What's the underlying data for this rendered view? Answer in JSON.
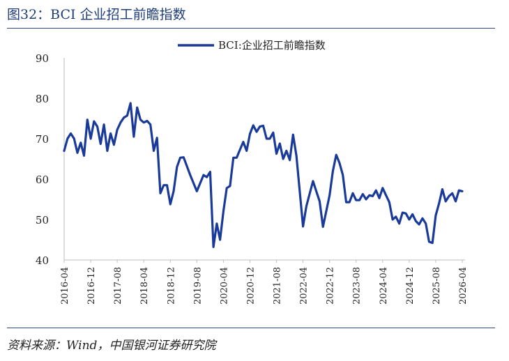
{
  "figure": {
    "title": "图32：BCI 企业招工前瞻指数",
    "source": "资料来源：Wind，中国银河证券研究院"
  },
  "colors": {
    "series": "#1a3a9a",
    "rule": "#2c4a86",
    "title": "#1f3d7a"
  },
  "chart_data": {
    "type": "line",
    "title": "",
    "xlabel": "",
    "ylabel": "",
    "ylim": [
      40,
      90
    ],
    "yticks": [
      40,
      50,
      60,
      70,
      80,
      90
    ],
    "xlim": [
      "2016-04",
      "2026-04"
    ],
    "xticks": [
      "2016-04",
      "2016-12",
      "2017-08",
      "2018-04",
      "2018-12",
      "2019-08",
      "2020-04",
      "2020-12",
      "2021-08",
      "2022-04",
      "2022-12",
      "2023-08",
      "2024-04",
      "2024-12",
      "2025-08",
      "2026-04"
    ],
    "grid": false,
    "legend": {
      "position": "top-center"
    },
    "series": [
      {
        "name": "BCI:企业招工前瞻指数",
        "x": [
          "2016-04",
          "2016-05",
          "2016-06",
          "2016-07",
          "2016-08",
          "2016-09",
          "2016-10",
          "2016-11",
          "2016-12",
          "2017-01",
          "2017-02",
          "2017-03",
          "2017-04",
          "2017-05",
          "2017-06",
          "2017-07",
          "2017-08",
          "2017-09",
          "2017-10",
          "2017-11",
          "2017-12",
          "2018-01",
          "2018-02",
          "2018-03",
          "2018-04",
          "2018-05",
          "2018-06",
          "2018-07",
          "2018-08",
          "2018-09",
          "2018-10",
          "2018-11",
          "2018-12",
          "2019-01",
          "2019-02",
          "2019-03",
          "2019-04",
          "2019-06",
          "2019-08",
          "2019-10",
          "2019-11",
          "2019-12",
          "2020-01",
          "2020-02",
          "2020-03",
          "2020-04",
          "2020-05",
          "2020-06",
          "2020-07",
          "2020-08",
          "2020-09",
          "2020-10",
          "2020-11",
          "2020-12",
          "2021-01",
          "2021-02",
          "2021-03",
          "2021-04",
          "2021-05",
          "2021-06",
          "2021-07",
          "2021-08",
          "2021-09",
          "2021-10",
          "2021-11",
          "2021-12",
          "2022-01",
          "2022-02",
          "2022-04",
          "2022-05",
          "2022-07",
          "2022-08",
          "2022-09",
          "2022-10",
          "2022-12",
          "2023-01",
          "2023-02",
          "2023-03",
          "2023-04",
          "2023-05",
          "2023-06",
          "2023-07",
          "2023-08",
          "2023-09",
          "2023-10",
          "2023-11",
          "2023-12",
          "2024-01",
          "2024-02",
          "2024-03",
          "2024-04",
          "2024-05",
          "2024-06",
          "2024-07",
          "2024-08",
          "2024-09",
          "2024-10",
          "2024-11",
          "2024-12",
          "2025-01",
          "2025-02",
          "2025-03",
          "2025-04",
          "2025-05",
          "2025-06",
          "2025-07",
          "2025-08",
          "2025-09",
          "2025-10",
          "2025-11",
          "2025-12",
          "2026-01",
          "2026-02",
          "2026-03",
          "2026-04"
        ],
        "y": [
          67,
          70,
          71.3,
          70,
          66.5,
          69,
          65.8,
          74.7,
          70,
          74.3,
          73,
          68.7,
          73.5,
          67,
          71.3,
          68.5,
          72.2,
          74,
          75.2,
          75.7,
          78.8,
          70.5,
          77.7,
          74.7,
          74,
          74.4,
          73.5,
          67,
          70.2,
          56.5,
          58.5,
          58.5,
          53.8,
          57,
          63,
          65.3,
          65.4,
          61,
          57,
          61,
          60.5,
          61.8,
          43.2,
          49,
          45,
          52,
          57.8,
          58.3,
          65.3,
          65.3,
          67.3,
          69.2,
          67,
          71.2,
          73.3,
          71.7,
          73,
          73.2,
          70,
          70,
          71.5,
          66.3,
          68.8,
          65,
          67,
          64.7,
          71,
          65.8,
          48.3,
          53.3,
          59.5,
          57,
          54.5,
          48.2,
          56,
          62,
          66,
          64,
          61,
          54.3,
          54.3,
          56.5,
          54.8,
          54.8,
          56.3,
          55,
          56,
          55.8,
          57.2,
          55.3,
          57.8,
          56,
          54.3,
          50,
          50.7,
          49,
          51.7,
          51.5,
          50,
          51.3,
          49.6,
          48.8,
          50.3,
          49,
          44.5,
          44.2,
          51,
          54,
          57.5,
          54.5,
          55.8,
          56.5,
          54.5,
          57.2,
          57
        ]
      }
    ]
  }
}
